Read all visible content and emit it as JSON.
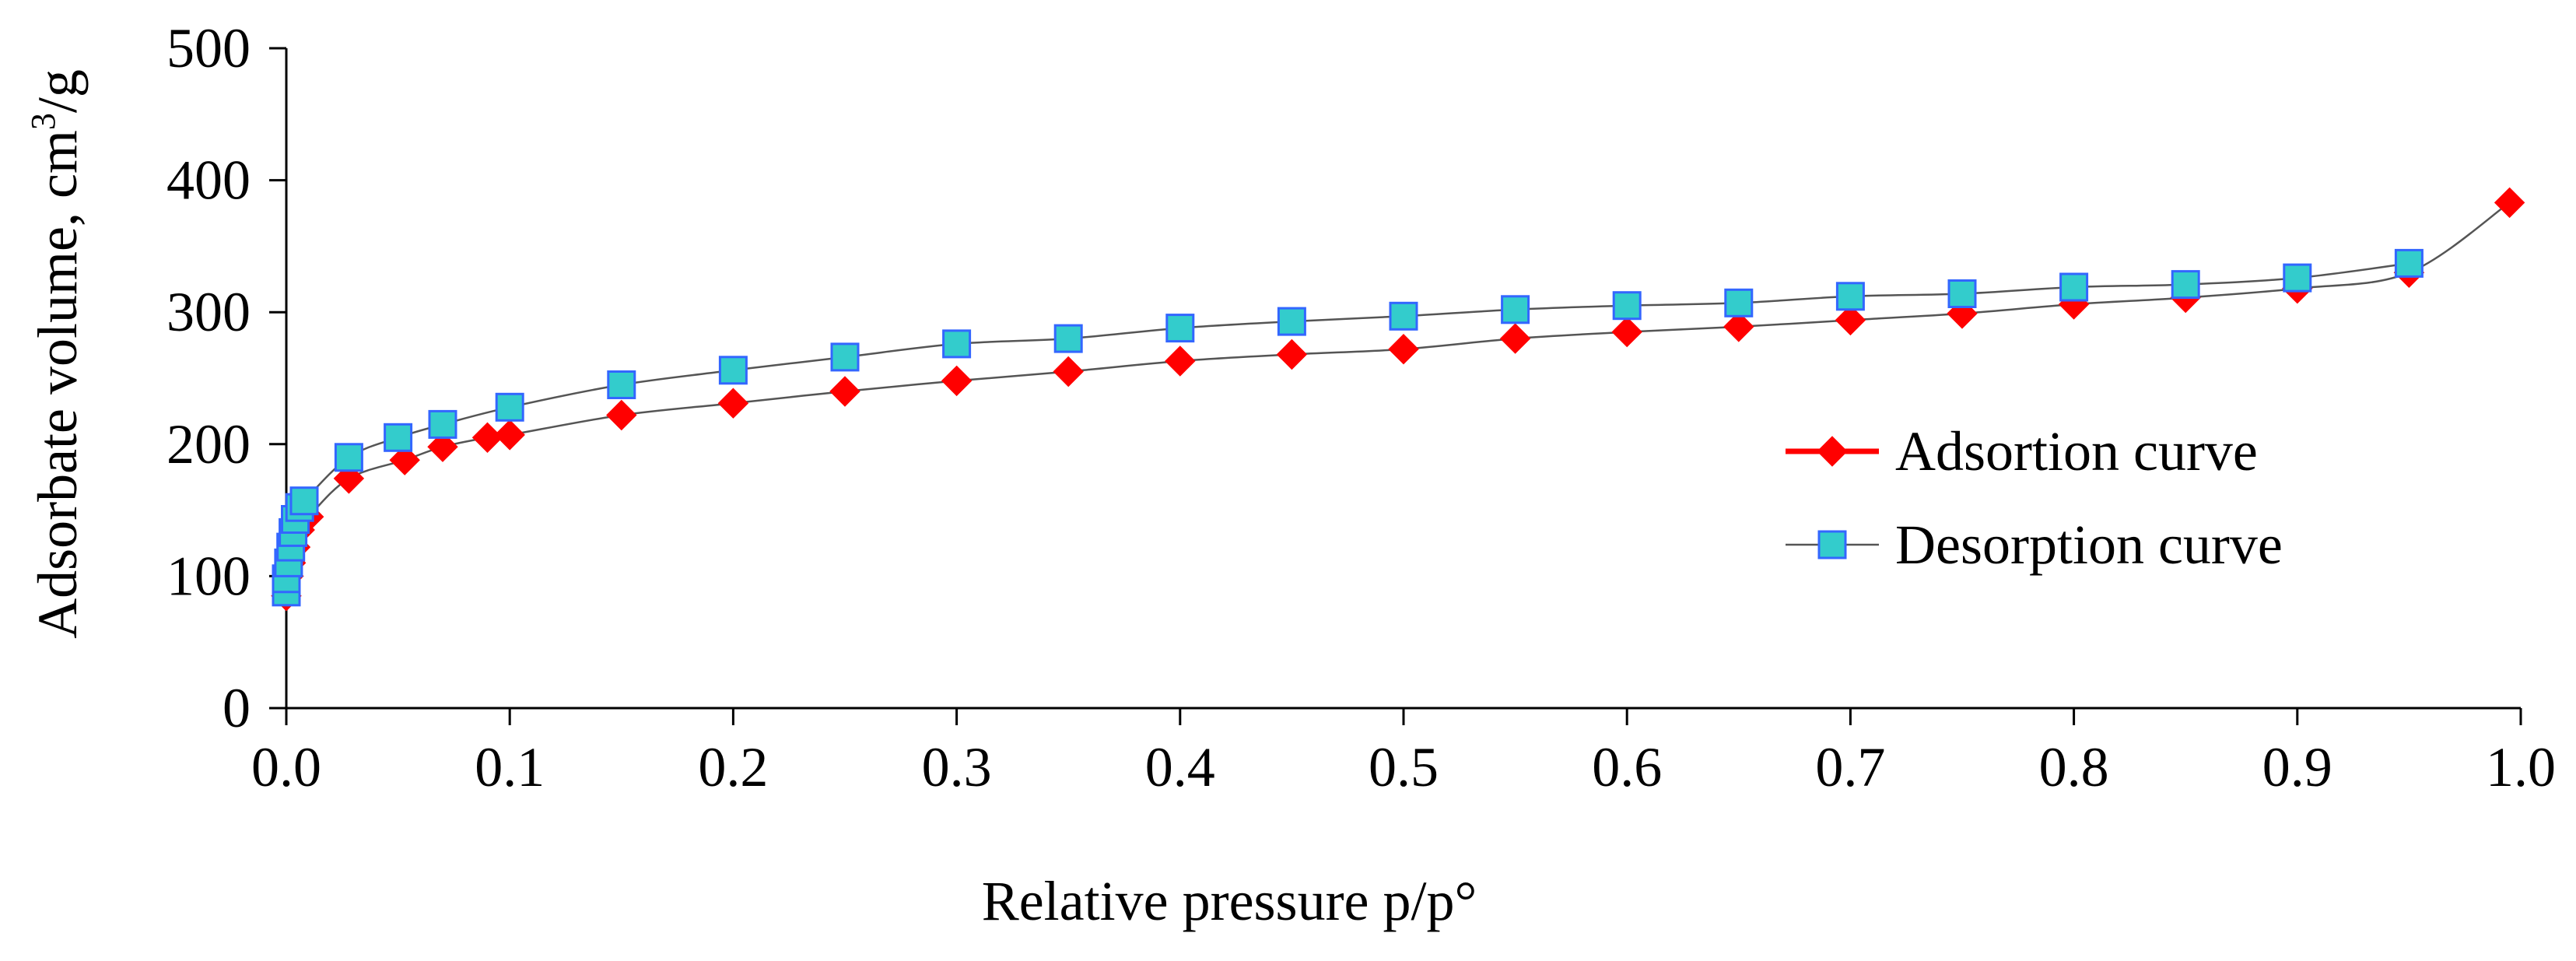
{
  "chart_data": {
    "type": "scatter",
    "title": "",
    "xlabel": "Relative pressure p/p°",
    "ylabel_main": "Adsorbate volume, cm",
    "ylabel_sup": "3",
    "ylabel_tail": "/g",
    "xlim": [
      0.0,
      1.0
    ],
    "ylim": [
      0,
      500
    ],
    "xticks": [
      {
        "value": 0.0,
        "label": "0.0"
      },
      {
        "value": 0.1,
        "label": "0.1"
      },
      {
        "value": 0.2,
        "label": "0.2"
      },
      {
        "value": 0.3,
        "label": "0.3"
      },
      {
        "value": 0.4,
        "label": "0.4"
      },
      {
        "value": 0.5,
        "label": "0.5"
      },
      {
        "value": 0.6,
        "label": "0.6"
      },
      {
        "value": 0.7,
        "label": "0.7"
      },
      {
        "value": 0.8,
        "label": "0.8"
      },
      {
        "value": 0.9,
        "label": "0.9"
      },
      {
        "value": 1.0,
        "label": "1.0"
      }
    ],
    "yticks": [
      {
        "value": 0,
        "label": "0"
      },
      {
        "value": 100,
        "label": "100"
      },
      {
        "value": 200,
        "label": "200"
      },
      {
        "value": 300,
        "label": "300"
      },
      {
        "value": 400,
        "label": "400"
      },
      {
        "value": 500,
        "label": "500"
      }
    ],
    "grid": false,
    "legend_position": "right-middle",
    "series": [
      {
        "name": "Adsortion curve",
        "marker": "diamond",
        "marker_color": "#ff0000",
        "line_color": "#ff0000",
        "curve_color": "#555555",
        "points": [
          {
            "x": 0.0,
            "y": 85
          },
          {
            "x": 0.001,
            "y": 100
          },
          {
            "x": 0.002,
            "y": 110
          },
          {
            "x": 0.004,
            "y": 122
          },
          {
            "x": 0.006,
            "y": 135
          },
          {
            "x": 0.01,
            "y": 145
          },
          {
            "x": 0.028,
            "y": 174
          },
          {
            "x": 0.053,
            "y": 188
          },
          {
            "x": 0.07,
            "y": 198
          },
          {
            "x": 0.09,
            "y": 205
          },
          {
            "x": 0.1,
            "y": 207
          },
          {
            "x": 0.15,
            "y": 222
          },
          {
            "x": 0.2,
            "y": 231
          },
          {
            "x": 0.25,
            "y": 240
          },
          {
            "x": 0.3,
            "y": 248
          },
          {
            "x": 0.35,
            "y": 255
          },
          {
            "x": 0.4,
            "y": 263
          },
          {
            "x": 0.45,
            "y": 268
          },
          {
            "x": 0.5,
            "y": 272
          },
          {
            "x": 0.55,
            "y": 280
          },
          {
            "x": 0.6,
            "y": 285
          },
          {
            "x": 0.65,
            "y": 289
          },
          {
            "x": 0.7,
            "y": 294
          },
          {
            "x": 0.75,
            "y": 299
          },
          {
            "x": 0.8,
            "y": 306
          },
          {
            "x": 0.85,
            "y": 311
          },
          {
            "x": 0.9,
            "y": 318
          },
          {
            "x": 0.95,
            "y": 330
          },
          {
            "x": 0.995,
            "y": 383
          }
        ]
      },
      {
        "name": "Desorption curve",
        "marker": "square",
        "marker_color": "#33cccc",
        "marker_border": "#3366ff",
        "line_color": "#555555",
        "curve_color": "#555555",
        "points": [
          {
            "x": 0.0,
            "y": 88
          },
          {
            "x": 0.0,
            "y": 98
          },
          {
            "x": 0.001,
            "y": 110
          },
          {
            "x": 0.002,
            "y": 122
          },
          {
            "x": 0.003,
            "y": 133
          },
          {
            "x": 0.004,
            "y": 143
          },
          {
            "x": 0.006,
            "y": 152
          },
          {
            "x": 0.008,
            "y": 157
          },
          {
            "x": 0.028,
            "y": 190
          },
          {
            "x": 0.05,
            "y": 205
          },
          {
            "x": 0.07,
            "y": 215
          },
          {
            "x": 0.1,
            "y": 228
          },
          {
            "x": 0.15,
            "y": 245
          },
          {
            "x": 0.2,
            "y": 256
          },
          {
            "x": 0.25,
            "y": 266
          },
          {
            "x": 0.3,
            "y": 276
          },
          {
            "x": 0.35,
            "y": 280
          },
          {
            "x": 0.4,
            "y": 288
          },
          {
            "x": 0.45,
            "y": 293
          },
          {
            "x": 0.5,
            "y": 297
          },
          {
            "x": 0.55,
            "y": 302
          },
          {
            "x": 0.6,
            "y": 305
          },
          {
            "x": 0.65,
            "y": 307
          },
          {
            "x": 0.7,
            "y": 312
          },
          {
            "x": 0.75,
            "y": 314
          },
          {
            "x": 0.8,
            "y": 319
          },
          {
            "x": 0.85,
            "y": 321
          },
          {
            "x": 0.9,
            "y": 326
          },
          {
            "x": 0.95,
            "y": 337
          }
        ]
      }
    ]
  }
}
